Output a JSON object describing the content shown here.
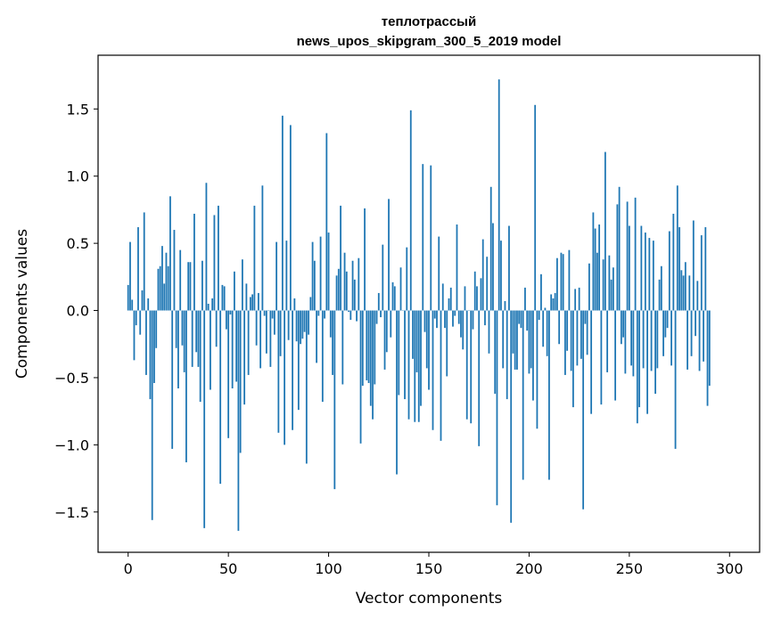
{
  "chart_data": {
    "type": "bar",
    "title_line1": "теплотрассый",
    "title_line2": "news_upos_skipgram_300_5_2019 model",
    "xlabel": "Vector components",
    "ylabel": "Components values",
    "xlim": [
      -15,
      315
    ],
    "ylim": [
      -1.8,
      1.9
    ],
    "xticks": [
      0,
      50,
      100,
      150,
      200,
      250,
      300
    ],
    "yticks": [
      -1.5,
      -1.0,
      -0.5,
      0.0,
      0.5,
      1.0,
      1.5
    ],
    "xtick_labels": [
      "0",
      "50",
      "100",
      "150",
      "200",
      "250",
      "300"
    ],
    "ytick_labels": [
      "−1.5",
      "−1.0",
      "−0.5",
      "0.0",
      "0.5",
      "1.0",
      "1.5"
    ],
    "bar_color": "#1f77b4",
    "values": [
      0.19,
      0.51,
      0.08,
      -0.37,
      -0.11,
      0.62,
      -0.18,
      0.15,
      0.73,
      -0.48,
      0.09,
      -0.66,
      -1.56,
      -0.54,
      -0.28,
      0.31,
      0.33,
      0.48,
      0.2,
      0.43,
      0.33,
      0.85,
      -1.03,
      0.6,
      -0.28,
      -0.58,
      0.45,
      -0.26,
      -0.46,
      -1.13,
      0.36,
      0.36,
      -0.42,
      0.72,
      -0.31,
      -0.42,
      -0.68,
      0.37,
      -1.62,
      0.95,
      0.05,
      -0.59,
      0.09,
      0.71,
      -0.27,
      0.78,
      -1.29,
      0.19,
      0.18,
      -0.14,
      -0.95,
      -0.03,
      -0.58,
      0.29,
      -0.53,
      -1.64,
      -1.06,
      0.38,
      -0.7,
      0.2,
      -0.48,
      0.1,
      0.12,
      0.78,
      -0.26,
      0.13,
      -0.43,
      0.93,
      -0.04,
      -0.32,
      0.0,
      -0.42,
      -0.06,
      -0.18,
      0.51,
      -0.91,
      -0.34,
      1.45,
      -1.0,
      0.52,
      -0.22,
      1.38,
      -0.89,
      0.09,
      -0.23,
      -0.74,
      -0.25,
      -0.21,
      -0.16,
      -1.14,
      -0.18,
      0.1,
      0.51,
      0.37,
      -0.39,
      -0.04,
      0.55,
      -0.68,
      -0.06,
      1.32,
      0.58,
      -0.2,
      -0.48,
      -1.33,
      0.26,
      0.31,
      0.78,
      -0.55,
      0.43,
      0.29,
      -0.01,
      -0.07,
      0.37,
      0.23,
      -0.08,
      0.39,
      -0.99,
      -0.56,
      0.76,
      -0.52,
      -0.54,
      -0.71,
      -0.81,
      -0.55,
      -0.1,
      0.13,
      -0.05,
      0.49,
      -0.44,
      -0.31,
      0.83,
      -0.2,
      0.21,
      0.18,
      -1.22,
      -0.63,
      0.32,
      0.0,
      -0.66,
      0.47,
      -0.81,
      1.49,
      -0.36,
      -0.83,
      -0.46,
      -0.83,
      -0.71,
      1.09,
      -0.16,
      -0.43,
      -0.59,
      1.08,
      -0.89,
      -0.06,
      -0.13,
      0.55,
      -0.97,
      0.2,
      -0.13,
      -0.49,
      0.09,
      0.17,
      -0.12,
      -0.04,
      0.64,
      -0.1,
      -0.2,
      -0.29,
      0.18,
      -0.81,
      0.0,
      -0.84,
      -0.14,
      0.29,
      0.18,
      -1.01,
      0.24,
      0.53,
      -0.11,
      0.4,
      -0.32,
      0.92,
      0.65,
      -0.62,
      -1.45,
      1.72,
      0.52,
      -0.43,
      0.07,
      -0.66,
      0.63,
      -1.58,
      -0.32,
      -0.44,
      -0.44,
      -0.1,
      -0.13,
      -1.26,
      0.17,
      -0.15,
      -0.47,
      -0.43,
      -0.67,
      1.53,
      -0.88,
      -0.07,
      0.27,
      -0.27,
      0.02,
      -0.34,
      -1.26,
      0.12,
      0.09,
      0.13,
      0.39,
      -0.25,
      0.43,
      0.42,
      -0.48,
      -0.3,
      0.45,
      -0.45,
      -0.72,
      0.16,
      -0.41,
      0.17,
      -0.36,
      -1.48,
      -0.1,
      -0.33,
      0.35,
      -0.77,
      0.73,
      0.61,
      0.43,
      0.64,
      -0.7,
      0.38,
      1.18,
      -0.46,
      0.41,
      0.23,
      0.32,
      -0.67,
      0.79,
      0.92,
      -0.25,
      -0.2,
      -0.47,
      0.81,
      0.63,
      -0.41,
      -0.49,
      0.84,
      -0.84,
      -0.72,
      0.63,
      -0.43,
      0.58,
      -0.77,
      0.54,
      -0.45,
      0.52,
      -0.62,
      -0.43,
      0.23,
      0.33,
      -0.34,
      -0.2,
      -0.13,
      0.59,
      -0.41,
      0.72,
      -1.03,
      0.93,
      0.62,
      0.3,
      0.26,
      0.36,
      -0.44,
      0.26,
      -0.34,
      0.67,
      -0.19,
      0.22,
      -0.45,
      0.56,
      -0.38,
      0.62,
      -0.71,
      -0.56
    ]
  }
}
